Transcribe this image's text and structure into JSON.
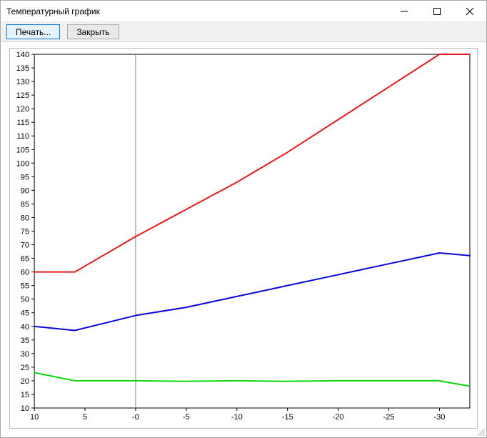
{
  "window": {
    "title": "Температурный график"
  },
  "toolbar": {
    "print_label": "Печать...",
    "close_label": "Закрыть"
  },
  "chart": {
    "type": "line",
    "background_color": "#ffffff",
    "plot_border_color": "#000000",
    "axis_tick_color": "#000000",
    "zero_line_color": "#808080",
    "zero_line_width": 1,
    "tick_label_fontsize": 11,
    "x_axis": {
      "min": 10,
      "max": -33,
      "ticks": [
        10,
        5,
        0,
        -5,
        -10,
        -15,
        -20,
        -25,
        -30
      ],
      "tick_labels": [
        "10",
        "5",
        "-0",
        "-5",
        "-10",
        "-15",
        "-20",
        "-25",
        "-30"
      ]
    },
    "y_axis": {
      "min": 10,
      "max": 140,
      "ticks": [
        10,
        15,
        20,
        25,
        30,
        35,
        40,
        45,
        50,
        55,
        60,
        65,
        70,
        75,
        80,
        85,
        90,
        95,
        100,
        105,
        110,
        115,
        120,
        125,
        130,
        135,
        140
      ]
    },
    "series": [
      {
        "name": "red",
        "color": "#e11b1b",
        "width": 2,
        "points": [
          {
            "x": 10,
            "y": 60
          },
          {
            "x": 6,
            "y": 60
          },
          {
            "x": 0,
            "y": 73
          },
          {
            "x": -5,
            "y": 83
          },
          {
            "x": -10,
            "y": 93
          },
          {
            "x": -15,
            "y": 104
          },
          {
            "x": -20,
            "y": 116
          },
          {
            "x": -25,
            "y": 128
          },
          {
            "x": -30,
            "y": 140
          },
          {
            "x": -33,
            "y": 140
          }
        ]
      },
      {
        "name": "blue",
        "color": "#0808d6",
        "width": 2,
        "points": [
          {
            "x": 10,
            "y": 40
          },
          {
            "x": 6,
            "y": 38.5
          },
          {
            "x": 0,
            "y": 44
          },
          {
            "x": -5,
            "y": 47
          },
          {
            "x": -10,
            "y": 51
          },
          {
            "x": -15,
            "y": 55
          },
          {
            "x": -20,
            "y": 59
          },
          {
            "x": -25,
            "y": 63
          },
          {
            "x": -30,
            "y": 67
          },
          {
            "x": -33,
            "y": 66
          }
        ]
      },
      {
        "name": "green",
        "color": "#0ed70e",
        "width": 2,
        "points": [
          {
            "x": 10,
            "y": 23
          },
          {
            "x": 6,
            "y": 20
          },
          {
            "x": 0,
            "y": 20
          },
          {
            "x": -5,
            "y": 19.8
          },
          {
            "x": -10,
            "y": 20
          },
          {
            "x": -15,
            "y": 19.8
          },
          {
            "x": -20,
            "y": 20
          },
          {
            "x": -25,
            "y": 20
          },
          {
            "x": -30,
            "y": 20
          },
          {
            "x": -33,
            "y": 18
          }
        ]
      }
    ]
  }
}
